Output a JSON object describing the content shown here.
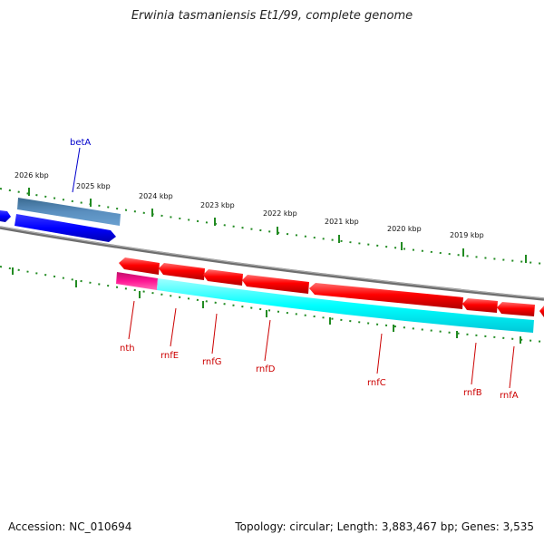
{
  "title": "Erwinia tasmaniensis Et1/99, complete genome",
  "footer": {
    "accession": "Accession: NC_010694",
    "summary": "Topology: circular; Length: 3,883,467 bp; Genes: 3,535"
  },
  "ticks": [
    "2026 kbp",
    "2025 kbp",
    "2024 kbp",
    "2023 kbp",
    "2022 kbp",
    "2021 kbp",
    "2020 kbp",
    "2019 kbp"
  ],
  "genes": [
    {
      "name": "betA",
      "strand": "-",
      "color": "#0000ff"
    },
    {
      "name": "nth",
      "strand": "+",
      "color": "#ff0000"
    },
    {
      "name": "rnfE",
      "strand": "+",
      "color": "#ff0000"
    },
    {
      "name": "rnfG",
      "strand": "+",
      "color": "#ff0000"
    },
    {
      "name": "rnfD",
      "strand": "+",
      "color": "#ff0000"
    },
    {
      "name": "rnfC",
      "strand": "+",
      "color": "#ff0000"
    },
    {
      "name": "rnfB",
      "strand": "+",
      "color": "#ff0000"
    },
    {
      "name": "rnfA",
      "strand": "+",
      "color": "#ff0000"
    }
  ],
  "colors": {
    "backbone": "#888888",
    "tick": "#228b22",
    "plus_label": "#cc0000",
    "minus_label": "#0000cc",
    "cds_minus": "#4682b4",
    "cds_plus_start": "#ff1493",
    "cds_plus": "#00ffff"
  }
}
